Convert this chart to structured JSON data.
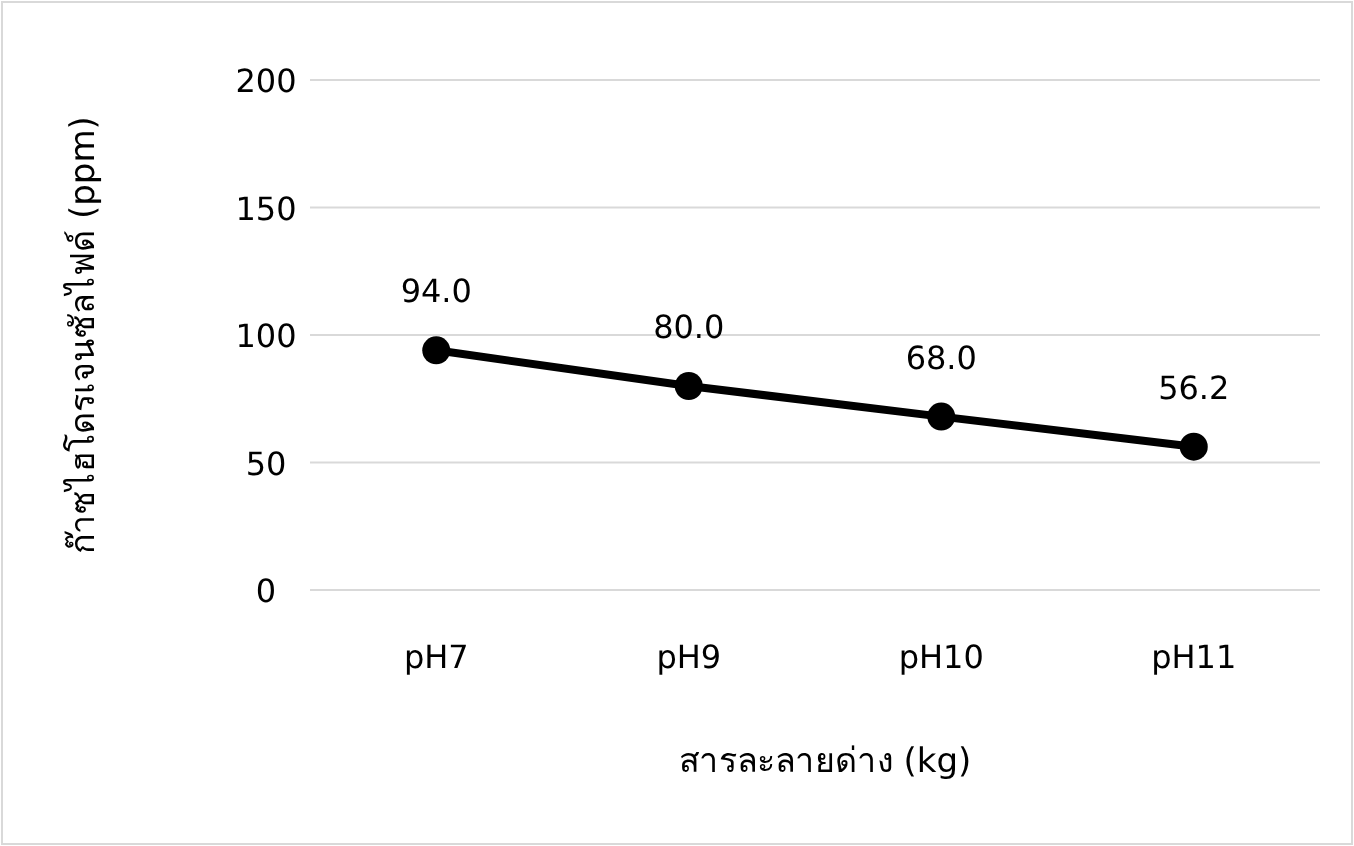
{
  "chart_data": {
    "type": "line",
    "xlabel": "สารละลายด่าง (kg)",
    "ylabel": "ก๊าซไฮโดรเจนซัลไฟด์ (ppm)",
    "categories": [
      "pH7",
      "pH9",
      "pH10",
      "pH11"
    ],
    "values": [
      94.0,
      80.0,
      68.0,
      56.2
    ],
    "value_labels": [
      "94.0",
      "80.0",
      "68.0",
      "56.2"
    ],
    "color": "#000000",
    "marker": "circle",
    "grid": "y",
    "ylim": [
      0,
      200
    ],
    "yticks": [
      0,
      50,
      100,
      150,
      200
    ]
  }
}
